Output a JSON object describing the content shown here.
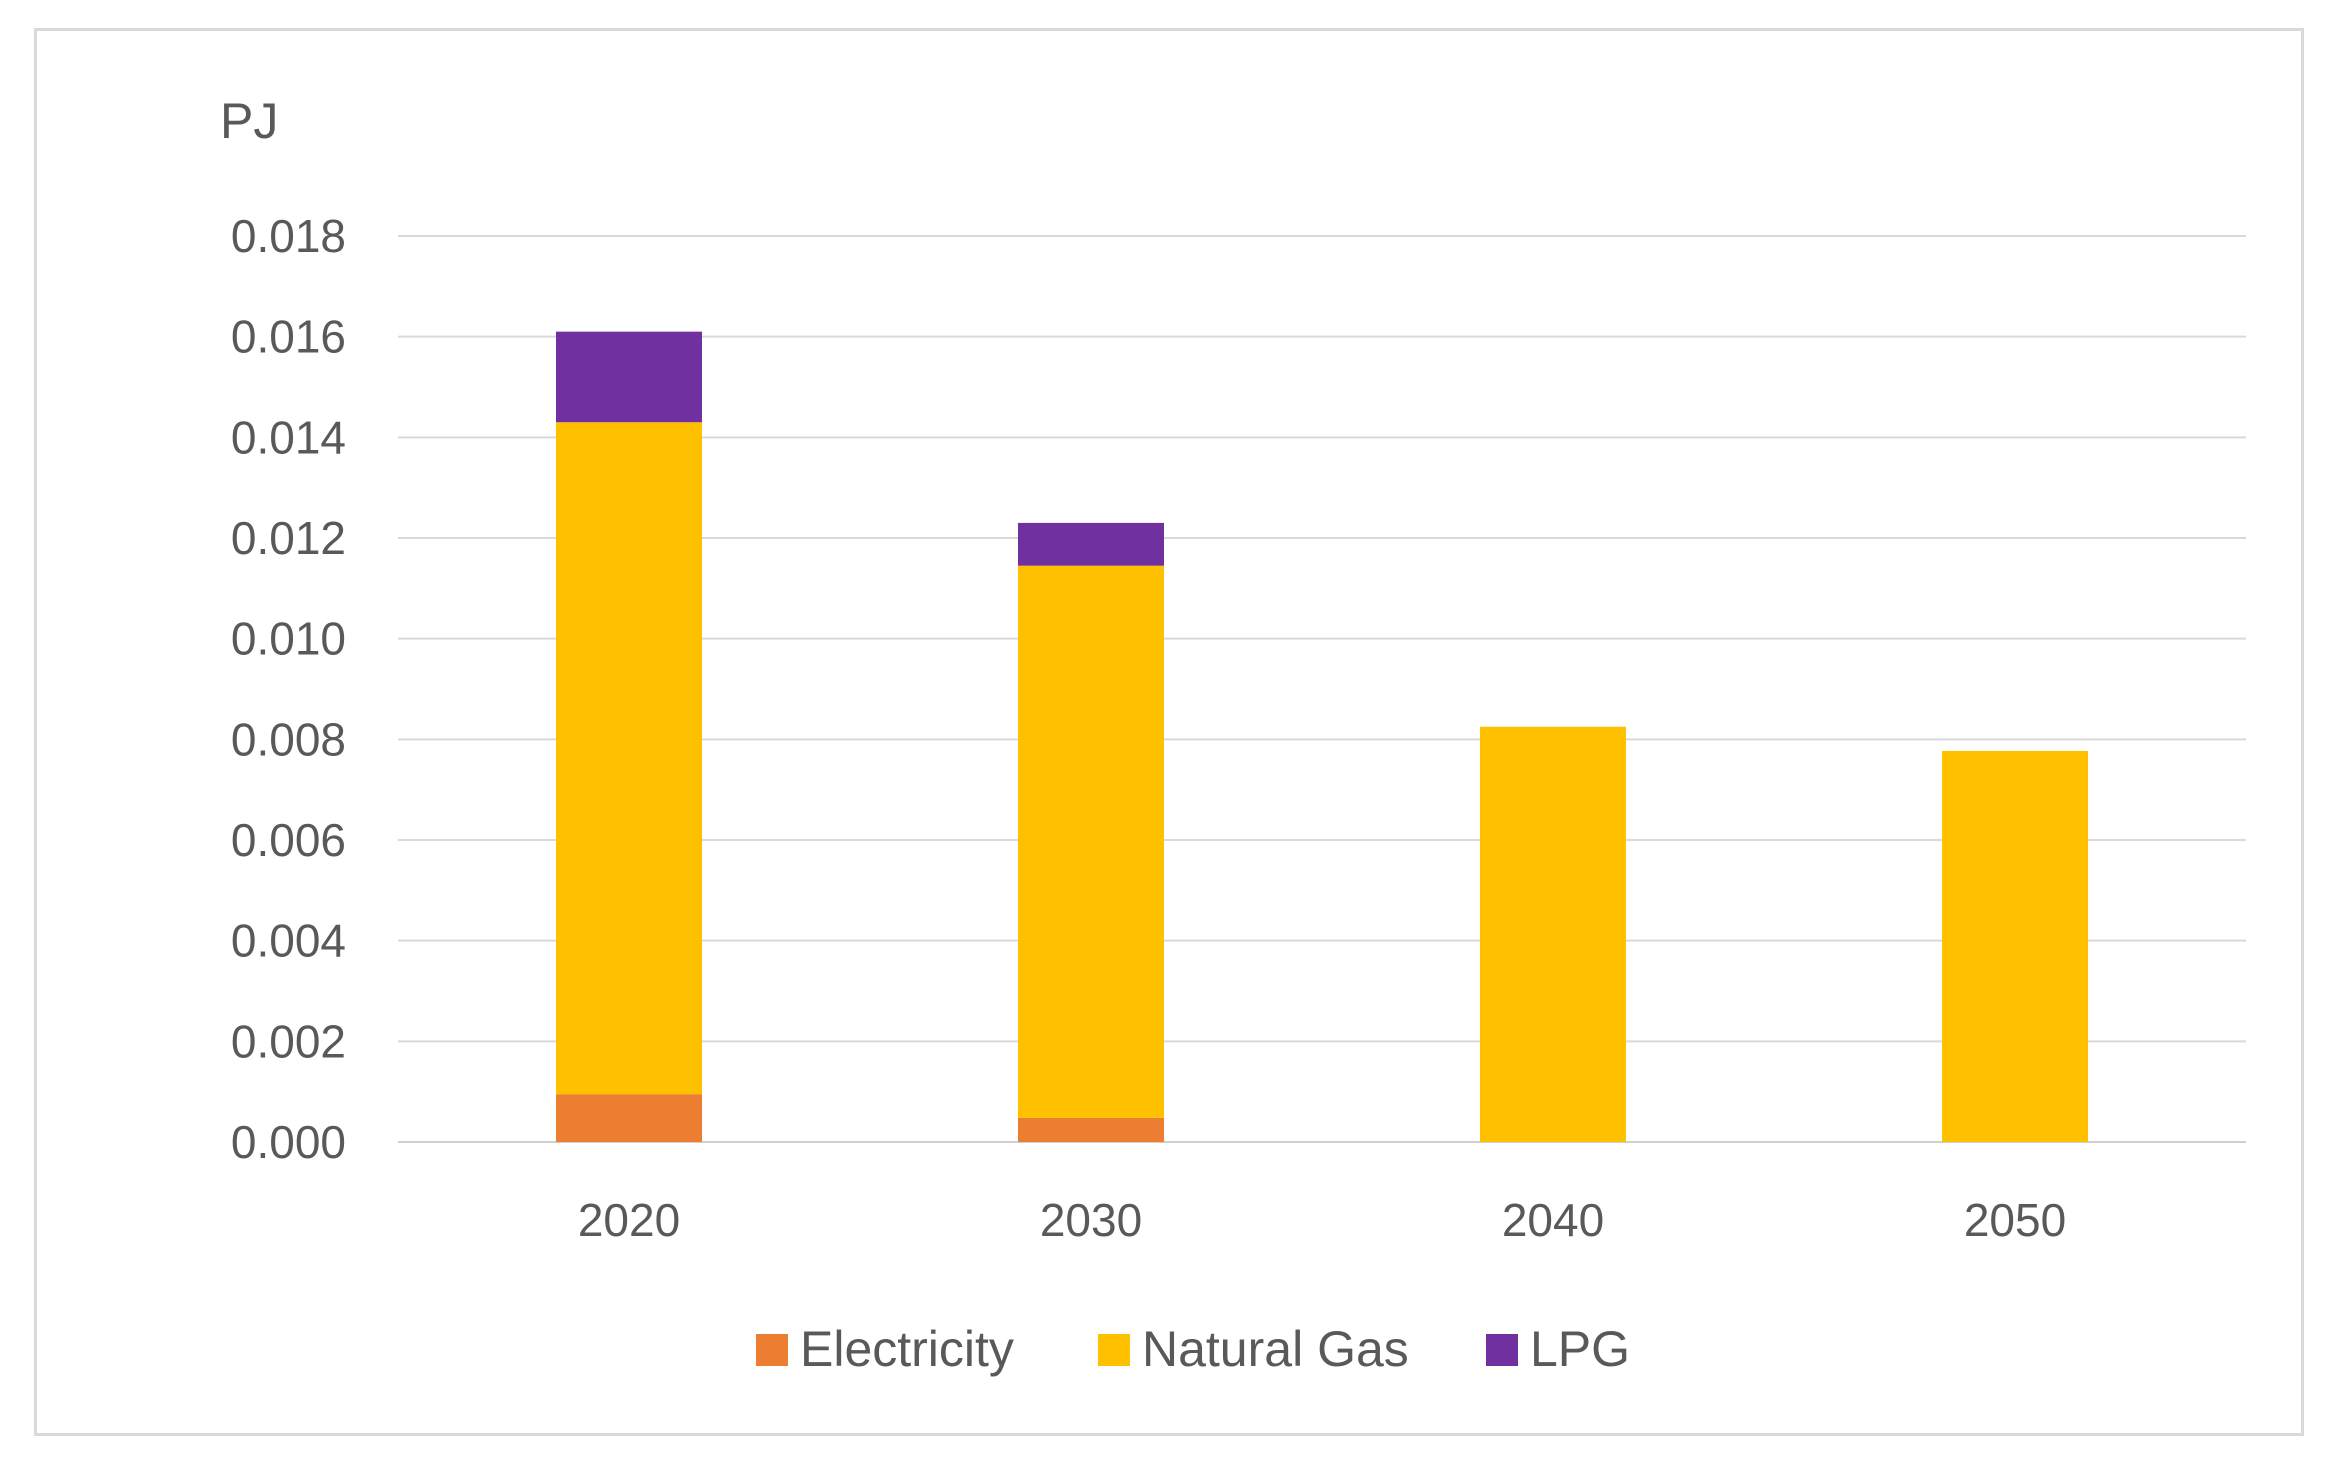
{
  "chart_data": {
    "type": "bar",
    "stacked": true,
    "title": "",
    "ylabel": "PJ",
    "xlabel": "",
    "categories": [
      "2020",
      "2030",
      "2040",
      "2050"
    ],
    "series": [
      {
        "name": "Electricity",
        "color": "#ED7D31",
        "values": [
          0.00095,
          0.00048,
          0.0,
          0.0
        ]
      },
      {
        "name": "Natural Gas",
        "color": "#FFC000",
        "values": [
          0.01335,
          0.01097,
          0.00825,
          0.00777
        ]
      },
      {
        "name": "LPG",
        "color": "#7030A0",
        "values": [
          0.0018,
          0.00085,
          0.0,
          0.0
        ]
      }
    ],
    "ylim": [
      0,
      0.018
    ],
    "yticks": [
      "0.000",
      "0.002",
      "0.004",
      "0.006",
      "0.008",
      "0.010",
      "0.012",
      "0.014",
      "0.016",
      "0.018"
    ],
    "grid": true,
    "legend_position": "bottom"
  }
}
